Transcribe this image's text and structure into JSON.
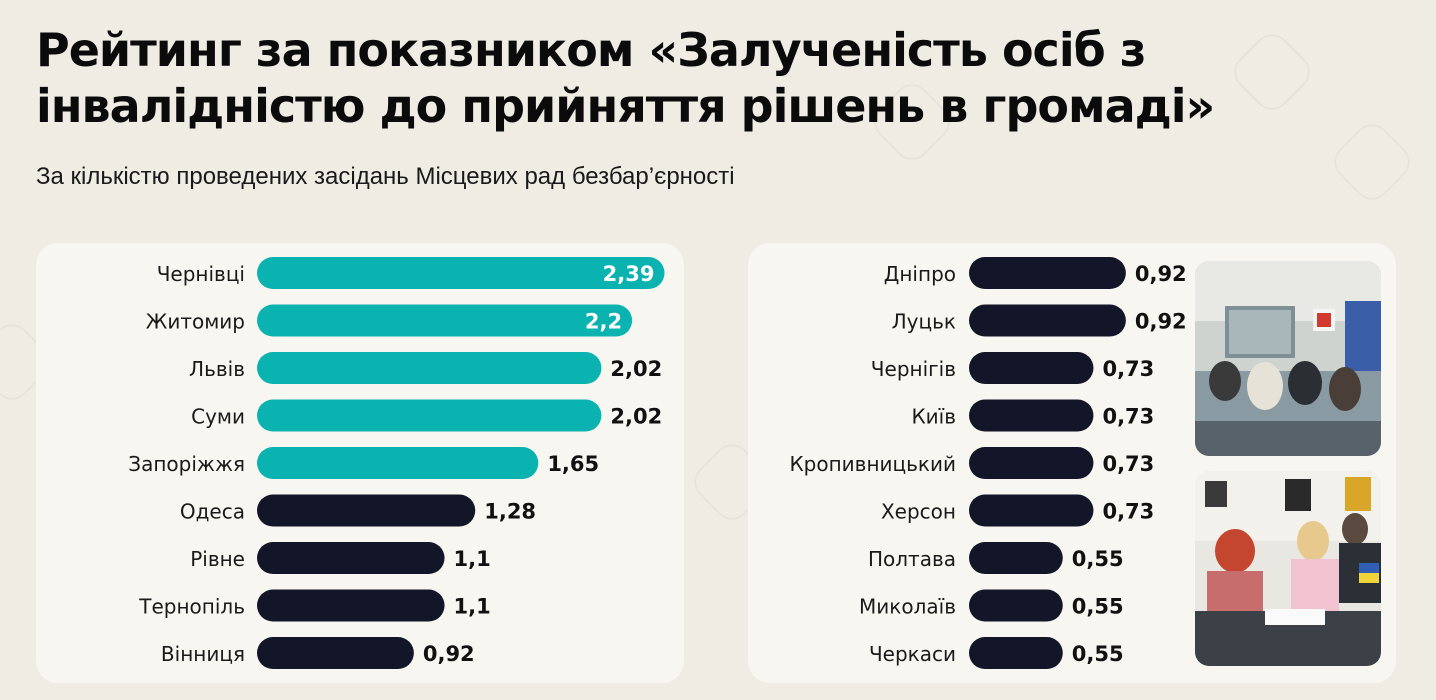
{
  "title": "Рейтинг за показником «Залученість осіб з інвалідністю до прийняття рішень в громаді»",
  "subtitle": "За кількістю проведених засідань Місцевих рад безбар’єрності",
  "colors": {
    "accent": "#0ab3b0",
    "dark": "#121628",
    "background": "#efece4",
    "panel": "#f8f6f1"
  },
  "chart_data": [
    {
      "type": "bar",
      "orientation": "horizontal",
      "categories": [
        "Чернівці",
        "Житомир",
        "Львів",
        "Суми",
        "Запоріжжя",
        "Одеса",
        "Рівне",
        "Тернопіль",
        "Вінниця"
      ],
      "values": [
        2.39,
        2.2,
        2.02,
        2.02,
        1.65,
        1.28,
        1.1,
        1.1,
        0.92
      ],
      "labels": [
        "2,39",
        "2,2",
        "2,02",
        "2,02",
        "1,65",
        "1,28",
        "1,1",
        "1,1",
        "0,92"
      ],
      "highlight_count": 5,
      "label_inside": [
        true,
        true,
        false,
        false,
        false,
        false,
        false,
        false,
        false
      ]
    },
    {
      "type": "bar",
      "orientation": "horizontal",
      "categories": [
        "Дніпро",
        "Луцьк",
        "Чернігів",
        "Київ",
        "Кропивницький",
        "Херсон",
        "Полтава",
        "Миколаїв",
        "Черкаси"
      ],
      "values": [
        0.92,
        0.92,
        0.73,
        0.73,
        0.73,
        0.73,
        0.55,
        0.55,
        0.55
      ],
      "labels": [
        "0,92",
        "0,92",
        "0,73",
        "0,73",
        "0,73",
        "0,73",
        "0,55",
        "0,55",
        "0,55"
      ],
      "highlight_count": 0,
      "label_inside": [
        false,
        false,
        false,
        false,
        false,
        false,
        false,
        false,
        false
      ]
    }
  ],
  "photos": [
    {
      "icon": "conference-room-photo"
    },
    {
      "icon": "meeting-table-photo"
    }
  ]
}
